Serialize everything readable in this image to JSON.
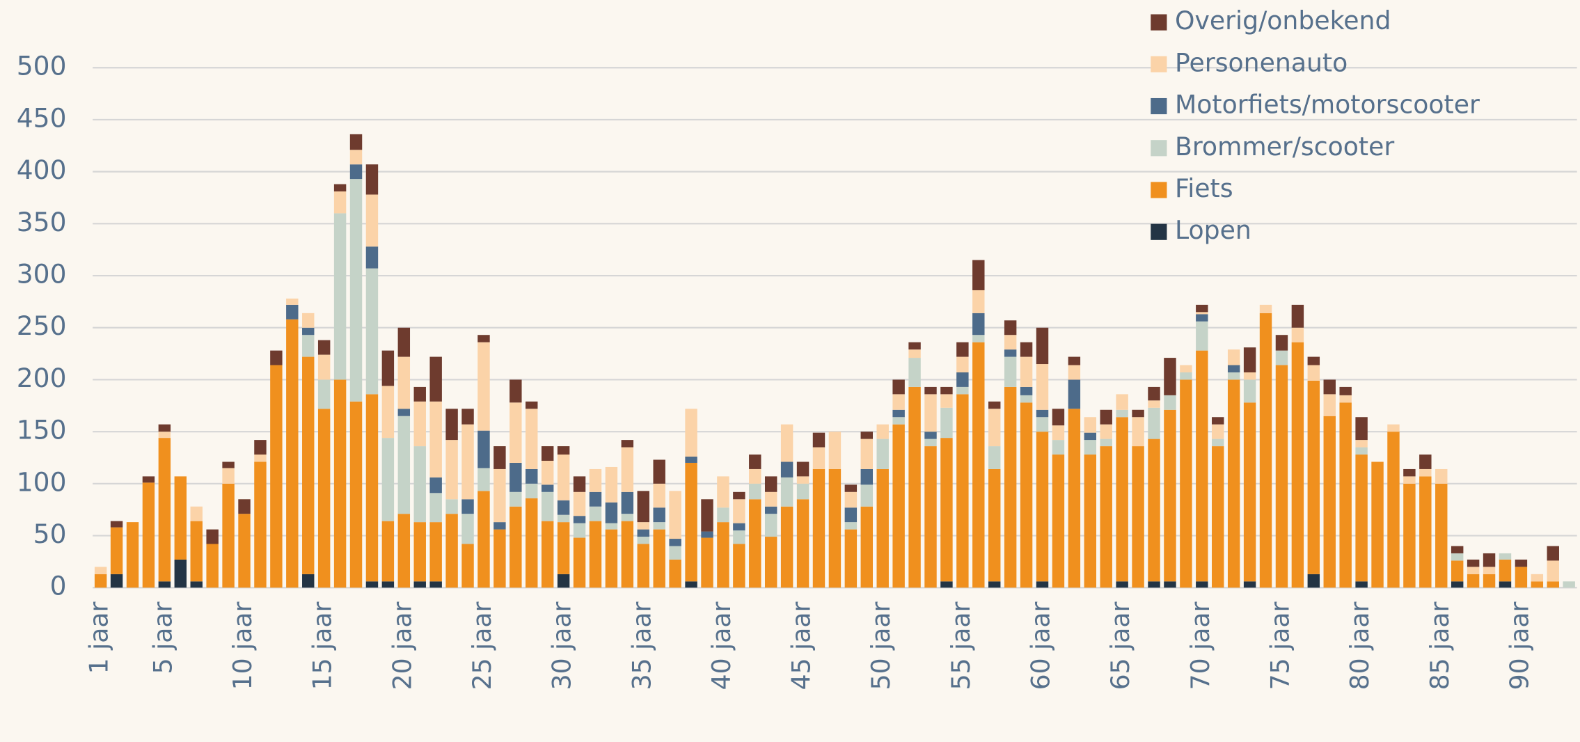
{
  "chart_data": {
    "type": "bar",
    "stacked": true,
    "legend": "top-right",
    "grid": true,
    "categories": [
      "1 jaar",
      null,
      null,
      null,
      "5 jaar",
      null,
      null,
      null,
      null,
      "10 jaar",
      null,
      null,
      null,
      null,
      "15 jaar",
      null,
      null,
      null,
      null,
      "20 jaar",
      null,
      null,
      null,
      null,
      "25 jaar",
      null,
      null,
      null,
      null,
      "30 jaar",
      null,
      null,
      null,
      null,
      "35 jaar",
      null,
      null,
      null,
      null,
      "40 jaar",
      null,
      null,
      null,
      null,
      "45 jaar",
      null,
      null,
      null,
      null,
      "50 jaar",
      null,
      null,
      null,
      null,
      "55 jaar",
      null,
      null,
      null,
      null,
      "60 jaar",
      null,
      null,
      null,
      null,
      "65 jaar",
      null,
      null,
      null,
      null,
      "70 jaar",
      null,
      null,
      null,
      null,
      "75 jaar",
      null,
      null,
      null,
      null,
      "80 jaar",
      null,
      null,
      null,
      null,
      "85 jaar",
      null,
      null,
      null,
      null,
      "90 jaar",
      null,
      null,
      null
    ],
    "ylim": [
      0,
      500
    ],
    "yticks": [
      0,
      50,
      100,
      150,
      200,
      250,
      300,
      350,
      400,
      450,
      500
    ],
    "series": [
      {
        "name": "Lopen",
        "color": "#233444",
        "values": [
          0,
          13,
          0,
          0,
          6,
          27,
          6,
          0,
          0,
          0,
          0,
          0,
          0,
          13,
          0,
          0,
          0,
          6,
          6,
          0,
          6,
          6,
          0,
          0,
          0,
          0,
          0,
          0,
          0,
          13,
          0,
          0,
          0,
          0,
          0,
          0,
          0,
          6,
          0,
          0,
          0,
          0,
          0,
          0,
          0,
          0,
          0,
          0,
          0,
          0,
          0,
          0,
          0,
          6,
          0,
          0,
          6,
          0,
          0,
          6,
          0,
          0,
          0,
          0,
          6,
          0,
          6,
          6,
          0,
          6,
          0,
          0,
          6,
          0,
          0,
          0,
          13,
          0,
          0,
          6,
          0,
          0,
          0,
          0,
          0,
          6,
          0,
          0,
          6,
          0,
          0,
          0,
          0
        ]
      },
      {
        "name": "Fiets",
        "color": "#f0901e",
        "values": [
          13,
          45,
          63,
          101,
          138,
          80,
          58,
          42,
          100,
          71,
          121,
          214,
          258,
          209,
          172,
          200,
          179,
          180,
          58,
          71,
          57,
          57,
          71,
          42,
          93,
          56,
          78,
          86,
          64,
          50,
          48,
          64,
          56,
          64,
          42,
          56,
          27,
          114,
          48,
          63,
          42,
          85,
          49,
          78,
          85,
          114,
          114,
          56,
          78,
          114,
          157,
          193,
          136,
          138,
          186,
          236,
          108,
          193,
          178,
          144,
          128,
          172,
          128,
          136,
          158,
          136,
          137,
          165,
          200,
          222,
          136,
          200,
          172,
          264,
          214,
          236,
          186,
          165,
          178,
          122,
          121,
          150,
          100,
          107,
          100,
          20,
          13,
          13,
          21,
          20,
          6,
          6,
          0
        ]
      },
      {
        "name": "Brommer/scooter",
        "color": "#c5d3c8",
        "values": [
          0,
          0,
          0,
          0,
          0,
          0,
          0,
          0,
          0,
          0,
          0,
          0,
          0,
          21,
          28,
          160,
          214,
          121,
          80,
          94,
          73,
          28,
          14,
          29,
          22,
          0,
          14,
          14,
          28,
          7,
          14,
          14,
          6,
          7,
          7,
          7,
          13,
          0,
          0,
          14,
          13,
          15,
          22,
          28,
          15,
          0,
          0,
          7,
          21,
          29,
          7,
          28,
          7,
          29,
          7,
          7,
          22,
          29,
          7,
          14,
          14,
          0,
          14,
          7,
          7,
          0,
          30,
          14,
          7,
          28,
          7,
          7,
          22,
          0,
          14,
          0,
          0,
          0,
          0,
          7,
          0,
          0,
          0,
          0,
          0,
          7,
          0,
          0,
          6,
          0,
          0,
          0,
          6
        ]
      },
      {
        "name": "Motorfiets/motorscooter",
        "color": "#4d6b8a",
        "values": [
          0,
          0,
          0,
          0,
          0,
          0,
          0,
          0,
          0,
          0,
          0,
          0,
          14,
          7,
          0,
          0,
          14,
          21,
          0,
          7,
          0,
          15,
          0,
          14,
          36,
          7,
          28,
          14,
          7,
          14,
          7,
          14,
          20,
          21,
          7,
          14,
          7,
          6,
          6,
          0,
          7,
          0,
          7,
          15,
          0,
          0,
          0,
          14,
          15,
          0,
          7,
          0,
          7,
          0,
          14,
          21,
          0,
          7,
          8,
          7,
          0,
          28,
          7,
          0,
          0,
          0,
          0,
          0,
          0,
          7,
          0,
          7,
          0,
          0,
          0,
          0,
          0,
          0,
          0,
          0,
          0,
          0,
          0,
          0,
          0,
          0,
          0,
          0,
          0,
          0,
          0,
          0,
          0
        ]
      },
      {
        "name": "Personenauto",
        "color": "#fbd3a8",
        "values": [
          7,
          0,
          0,
          0,
          6,
          0,
          14,
          0,
          15,
          0,
          7,
          0,
          6,
          14,
          24,
          21,
          14,
          50,
          50,
          50,
          43,
          73,
          57,
          72,
          85,
          51,
          58,
          58,
          23,
          44,
          23,
          22,
          34,
          43,
          7,
          23,
          46,
          46,
          0,
          30,
          23,
          14,
          14,
          36,
          7,
          21,
          36,
          15,
          29,
          14,
          15,
          8,
          36,
          13,
          15,
          22,
          36,
          14,
          29,
          44,
          14,
          14,
          15,
          14,
          15,
          28,
          7,
          0,
          7,
          2,
          14,
          15,
          7,
          8,
          0,
          14,
          15,
          21,
          7,
          7,
          0,
          7,
          7,
          7,
          14,
          0,
          7,
          7,
          0,
          0,
          7,
          20,
          0
        ]
      },
      {
        "name": "Overig/onbekend",
        "color": "#6e3b2e",
        "values": [
          0,
          6,
          0,
          6,
          7,
          0,
          0,
          14,
          6,
          14,
          14,
          14,
          0,
          0,
          14,
          7,
          15,
          29,
          34,
          28,
          14,
          43,
          30,
          15,
          7,
          22,
          22,
          7,
          14,
          8,
          15,
          0,
          0,
          7,
          30,
          23,
          0,
          0,
          31,
          0,
          7,
          14,
          15,
          0,
          14,
          14,
          0,
          7,
          7,
          0,
          14,
          7,
          7,
          7,
          14,
          29,
          7,
          14,
          14,
          35,
          16,
          8,
          0,
          14,
          0,
          7,
          13,
          36,
          0,
          7,
          7,
          0,
          24,
          0,
          15,
          22,
          8,
          14,
          8,
          22,
          0,
          0,
          7,
          14,
          0,
          7,
          7,
          13,
          0,
          7,
          0,
          14,
          0
        ]
      }
    ]
  }
}
